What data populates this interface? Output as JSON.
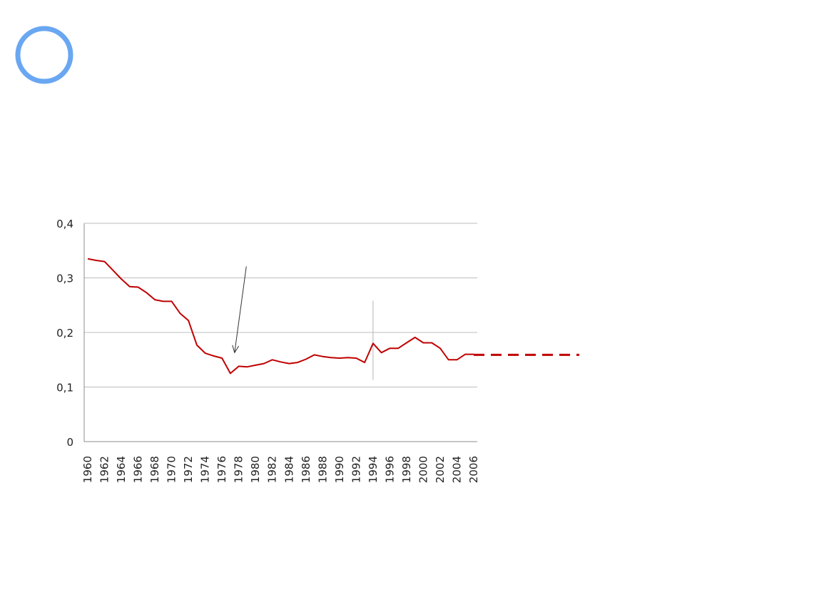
{
  "slide": {
    "decoration_color": "#6aa7f2"
  },
  "chart_data": {
    "type": "line",
    "title": "",
    "xlabel": "",
    "ylabel": "",
    "x": [
      1960,
      1961,
      1962,
      1963,
      1964,
      1965,
      1966,
      1967,
      1968,
      1969,
      1970,
      1971,
      1972,
      1973,
      1974,
      1975,
      1976,
      1977,
      1978,
      1979,
      1980,
      1981,
      1982,
      1983,
      1984,
      1985,
      1986,
      1987,
      1988,
      1989,
      1990,
      1991,
      1992,
      1993,
      1994,
      1995,
      1996,
      1997,
      1998,
      1999,
      2000,
      2001,
      2002,
      2003,
      2004,
      2005,
      2006
    ],
    "x_tick_labels": [
      "1960",
      "1962",
      "1964",
      "1966",
      "1968",
      "1970",
      "1972",
      "1974",
      "1976",
      "1978",
      "1980",
      "1982",
      "1984",
      "1986",
      "1988",
      "1990",
      "1992",
      "1994",
      "1996",
      "1998",
      "2000",
      "2002",
      "2004",
      "2006"
    ],
    "y_tick_labels": [
      "0",
      "0,1",
      "0,2",
      "0,3",
      "0,4"
    ],
    "y_ticks": [
      0,
      0.1,
      0.2,
      0.3,
      0.4
    ],
    "ylim": [
      0,
      0.4
    ],
    "xlim": [
      1960,
      2006
    ],
    "grid": true,
    "series": [
      {
        "color": "#c00000",
        "values": [
          0.335,
          0.332,
          0.33,
          0.314,
          0.298,
          0.284,
          0.283,
          0.273,
          0.26,
          0.257,
          0.257,
          0.235,
          0.222,
          0.177,
          0.162,
          0.157,
          0.153,
          0.125,
          0.138,
          0.137,
          0.14,
          0.143,
          0.15,
          0.146,
          0.143,
          0.145,
          0.151,
          0.159,
          0.156,
          0.154,
          0.153,
          0.154,
          0.153,
          0.145,
          0.18,
          0.163,
          0.171,
          0.171,
          0.181,
          0.191,
          0.181,
          0.181,
          0.171,
          0.15,
          0.15,
          0.16,
          0.16
        ]
      }
    ],
    "projection": {
      "color": "#c00000",
      "from_x": 2006,
      "value": 0.159,
      "style": "dashed"
    },
    "annotations": [
      {
        "type": "arrow",
        "from": [
          1978.9,
          0.321
        ],
        "to": [
          1977.5,
          0.163
        ]
      },
      {
        "type": "vline",
        "x": 1994,
        "y_from": 0.113,
        "y_to": 0.258
      }
    ]
  }
}
